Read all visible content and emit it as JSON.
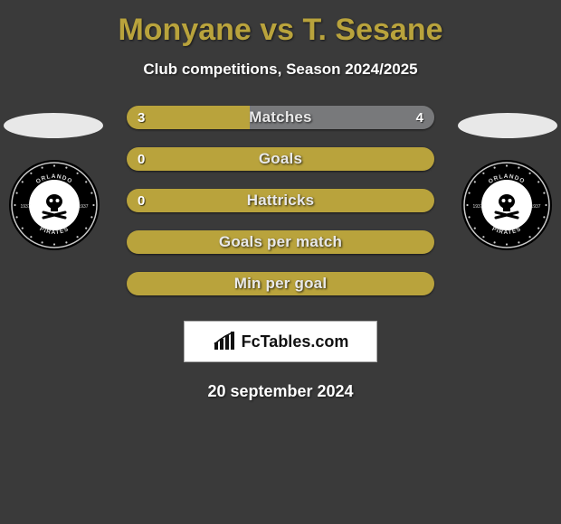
{
  "title_color": "#b9a33c",
  "title_text": "Monyane vs T. Sesane",
  "subtitle": "Club competitions, Season 2024/2025",
  "ellipse_color": "#e8e8e8",
  "crest": {
    "outer": "#000000",
    "ring1": "#c9c9c9",
    "ring2": "#000000",
    "ring3": "#ffffff",
    "dots": "#c9c9c9",
    "year_left": "1937",
    "year_right": "1937",
    "name_top": "ORLANDO",
    "name_bot": "PIRATES"
  },
  "bars": [
    {
      "label": "Matches",
      "left_val": "3",
      "right_val": "4",
      "left_pct": 40,
      "right_pct": 60,
      "left_color": "#b9a33c",
      "right_color": "#78797b"
    },
    {
      "label": "Goals",
      "left_val": "0",
      "right_val": "",
      "left_pct": 100,
      "right_pct": 0,
      "left_color": "#b9a33c",
      "right_color": "#78797b"
    },
    {
      "label": "Hattricks",
      "left_val": "0",
      "right_val": "",
      "left_pct": 100,
      "right_pct": 0,
      "left_color": "#b9a33c",
      "right_color": "#78797b"
    },
    {
      "label": "Goals per match",
      "left_val": "",
      "right_val": "",
      "left_pct": 100,
      "right_pct": 0,
      "left_color": "#b9a33c",
      "right_color": "#78797b"
    },
    {
      "label": "Min per goal",
      "left_val": "",
      "right_val": "",
      "left_pct": 100,
      "right_pct": 0,
      "left_color": "#b9a33c",
      "right_color": "#78797b"
    }
  ],
  "brand": "FcTables.com",
  "date": "20 september 2024"
}
